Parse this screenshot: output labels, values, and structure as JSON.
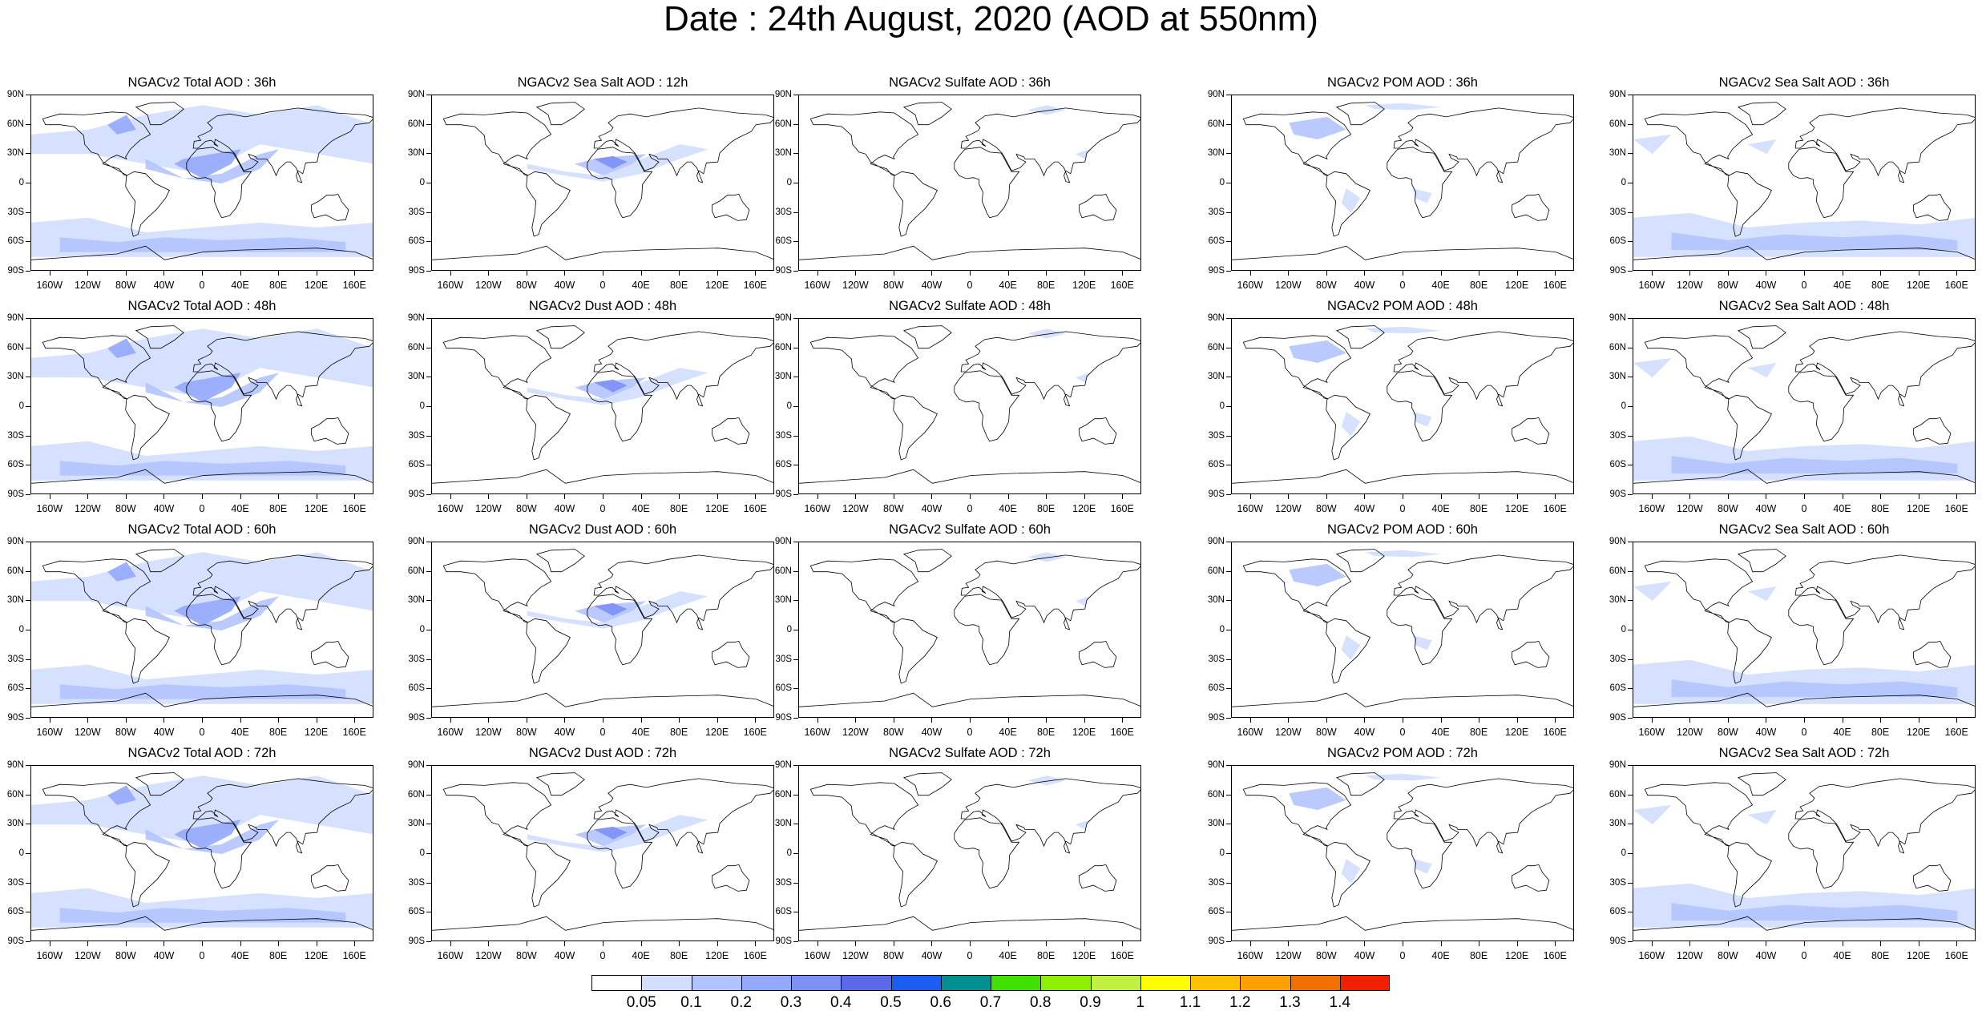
{
  "title": "Date : 24th August, 2020 (AOD at 550nm)",
  "lat_ticks": [
    "90N",
    "60N",
    "30N",
    "0",
    "30S",
    "60S",
    "90S"
  ],
  "lon_ticks": [
    "160W",
    "120W",
    "80W",
    "40W",
    "0",
    "40E",
    "80E",
    "120E",
    "160E"
  ],
  "panels": [
    [
      "NGACv2 Total AOD : 36h",
      "NGACv2 Sea Salt  AOD : 12h",
      "NGACv2 Sulfate AOD : 36h",
      "NGACv2 POM AOD : 36h",
      "NGACv2 Sea Salt  AOD : 36h"
    ],
    [
      "NGACv2 Total AOD : 48h",
      "NGACv2 Dust AOD : 48h",
      "NGACv2 Sulfate AOD : 48h",
      "NGACv2 POM AOD : 48h",
      "NGACv2 Sea Salt  AOD : 48h"
    ],
    [
      "NGACv2 Total AOD : 60h",
      "NGACv2 Dust AOD : 60h",
      "NGACv2 Sulfate AOD : 60h",
      "NGACv2 POM AOD : 60h",
      "NGACv2 Sea Salt  AOD : 60h"
    ],
    [
      "NGACv2 Total AOD : 72h",
      "NGACv2 Dust AOD : 72h",
      "NGACv2 Sulfate AOD : 72h",
      "NGACv2 POM AOD : 72h",
      "NGACv2 Sea Salt  AOD : 72h"
    ]
  ],
  "legend": {
    "labels": [
      "0.05",
      "0.1",
      "0.2",
      "0.3",
      "0.4",
      "0.5",
      "0.6",
      "0.7",
      "0.8",
      "0.9",
      "1",
      "1.1",
      "1.2",
      "1.3",
      "1.4"
    ],
    "colors": [
      "#ffffff",
      "#d2deff",
      "#b2c4ff",
      "#93a9fb",
      "#7d90f6",
      "#5c68ea",
      "#1a5df0",
      "#009090",
      "#40e000",
      "#8ef000",
      "#c0f040",
      "#ffff00",
      "#ffc000",
      "#ffa000",
      "#f07000",
      "#f02000"
    ]
  },
  "colors": {
    "land_outline": "#000000",
    "aod_light": "#d2deff",
    "aod_mid": "#b2c4ff",
    "aod_high": "#7d90f6"
  }
}
